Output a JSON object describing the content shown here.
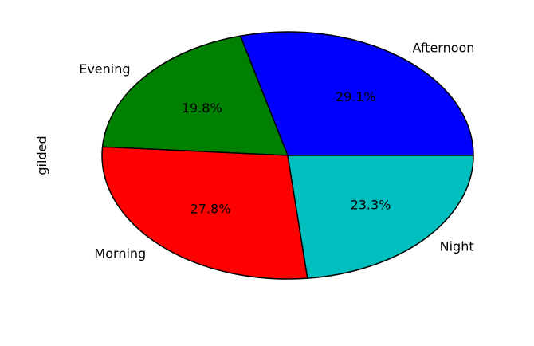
{
  "chart_data": {
    "type": "pie",
    "ylabel": "gilded",
    "title": "",
    "slices": [
      {
        "label": "Afternoon",
        "value": 29.1,
        "pct_label": "29.1%",
        "color": "#0000ff"
      },
      {
        "label": "Evening",
        "value": 19.8,
        "pct_label": "19.8%",
        "color": "#008000"
      },
      {
        "label": "Morning",
        "value": 27.8,
        "pct_label": "27.8%",
        "color": "#ff0000"
      },
      {
        "label": "Night",
        "value": 23.3,
        "pct_label": "23.3%",
        "color": "#00bfbf"
      }
    ],
    "start_angle_deg": 0,
    "direction": "counterclockwise",
    "edge_color": "#000000"
  }
}
